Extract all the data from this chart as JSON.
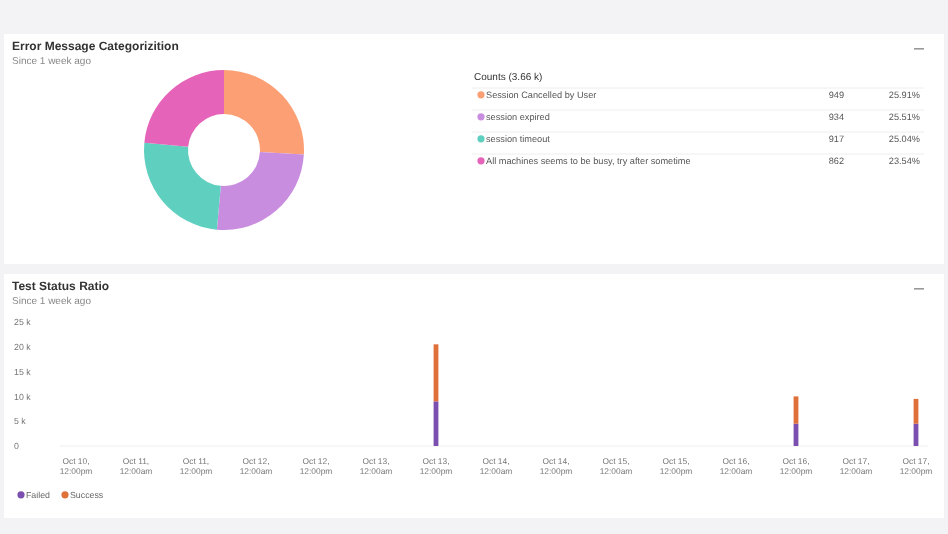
{
  "chart_data": [
    {
      "type": "donut",
      "title": "Error Message Categorizition",
      "subtitle": "Since 1 week ago",
      "legend_title": "Counts (3.66 k)",
      "legend": "right",
      "data_labels": true,
      "categories": [
        "Session Cancelled by User",
        "session expired",
        "session timeout",
        "All machines seems to be busy, try after sometime"
      ],
      "values": [
        949,
        934,
        917,
        862
      ],
      "annotations": [
        "25.91%",
        "25.51%",
        "25.04%",
        "23.54%"
      ],
      "colors": [
        "#fc9f74",
        "#c98ddf",
        "#5fcfbf",
        "#e564b9"
      ]
    },
    {
      "type": "bar",
      "title": "Test Status Ratio",
      "subtitle": "Since 1 week ago",
      "stacked": true,
      "legend": "bottom left",
      "grid": false,
      "categories": [
        "Oct 10, 12:00pm",
        "Oct 11, 12:00am",
        "Oct 11, 12:00pm",
        "Oct 12, 12:00am",
        "Oct 12, 12:00pm",
        "Oct 13, 12:00am",
        "Oct 13, 12:00pm",
        "Oct 14, 12:00am",
        "Oct 14, 12:00pm",
        "Oct 15, 12:00am",
        "Oct 15, 12:00pm",
        "Oct 16, 12:00am",
        "Oct 16, 12:00pm",
        "Oct 17, 12:00am",
        "Oct 17, 12:00pm"
      ],
      "ylim": [
        0,
        25000
      ],
      "yticks": [
        {
          "value": 0,
          "label": "0"
        },
        {
          "value": 5000,
          "label": "5 k"
        },
        {
          "value": 10000,
          "label": "10 k"
        },
        {
          "value": 15000,
          "label": "15 k"
        },
        {
          "value": 20000,
          "label": "20 k"
        },
        {
          "value": 25000,
          "label": "25 k"
        }
      ],
      "series": [
        {
          "name": "Failed",
          "color": "#7b4fb0",
          "values": [
            null,
            null,
            null,
            null,
            null,
            null,
            9000,
            null,
            null,
            null,
            null,
            null,
            4500,
            null,
            4500
          ]
        },
        {
          "name": "Success",
          "color": "#e0703a",
          "values": [
            null,
            null,
            null,
            null,
            null,
            null,
            11500,
            null,
            null,
            null,
            null,
            null,
            5500,
            null,
            5000
          ]
        }
      ]
    }
  ]
}
